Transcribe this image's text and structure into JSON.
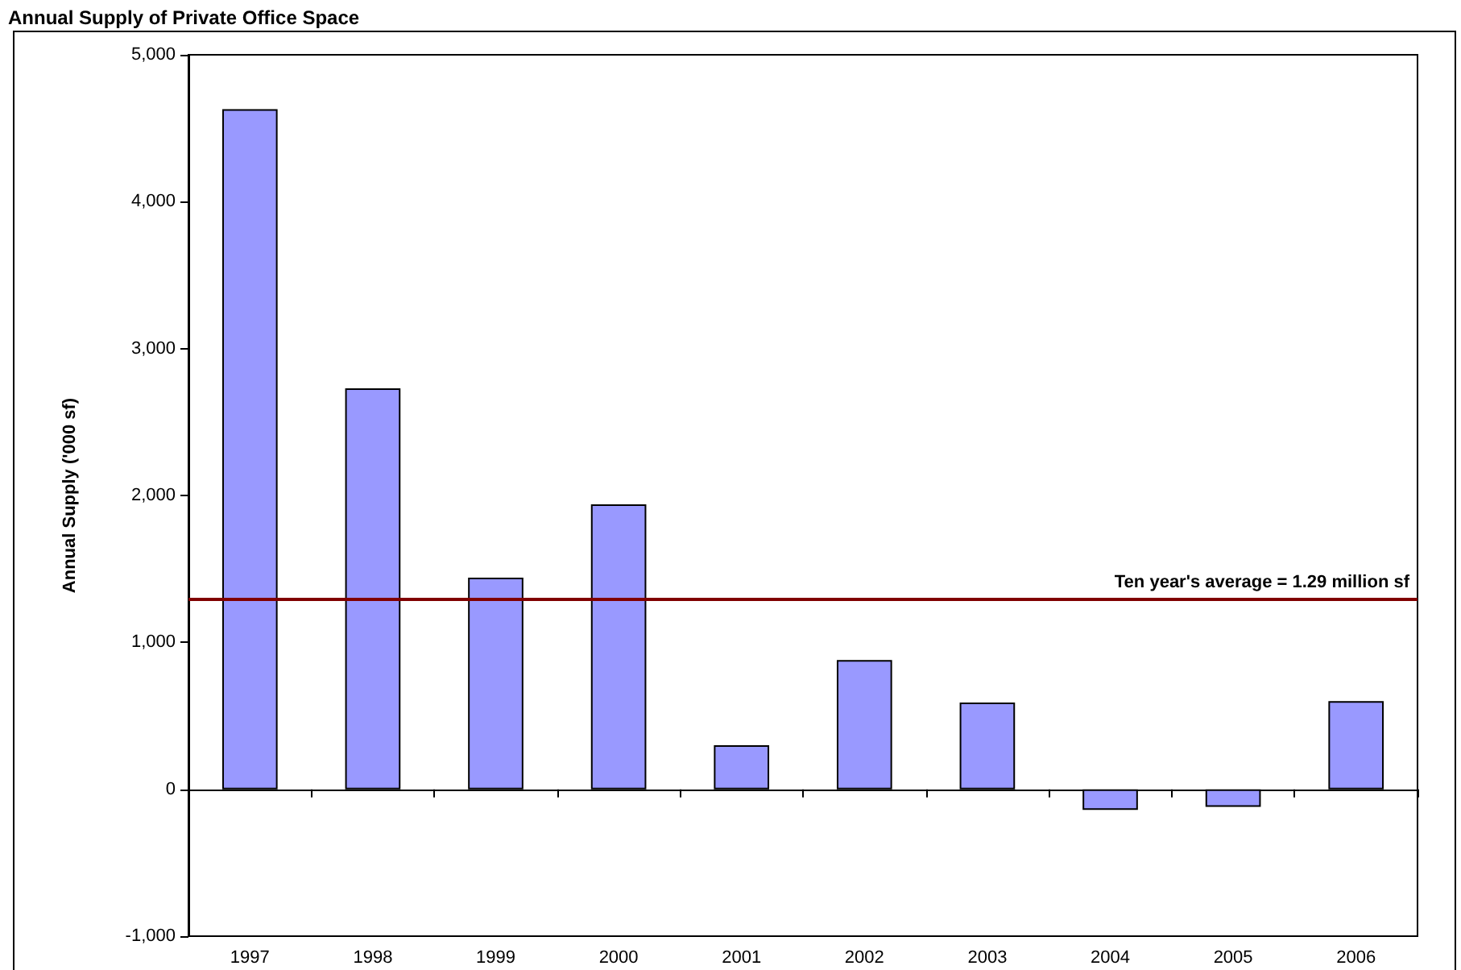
{
  "chart_data": {
    "type": "bar",
    "title": "Annual Supply of Private Office Space",
    "ylabel": "Annual Supply ('000 sf)",
    "categories": [
      "1997",
      "1998",
      "1999",
      "2000",
      "2001",
      "2002",
      "2003",
      "2004",
      "2005",
      "2006"
    ],
    "values": [
      4630,
      2730,
      1440,
      1940,
      300,
      880,
      590,
      -140,
      -120,
      600
    ],
    "color": "#9999ff",
    "ylim": [
      -1000,
      5000
    ],
    "yticks": [
      {
        "value": -1000,
        "label": "-1,000"
      },
      0,
      {
        "value": 1000,
        "label": "1,000"
      },
      {
        "value": 2000,
        "label": "2,000"
      },
      {
        "value": 3000,
        "label": "3,000"
      },
      {
        "value": 4000,
        "label": "4,000"
      },
      {
        "value": 5000,
        "label": "5,000"
      }
    ],
    "ref_lines": [
      {
        "axis": "y",
        "value": 1290,
        "label": "Ten year's average = 1.29 million sf",
        "color": "#800000"
      }
    ],
    "line_style": "solid"
  }
}
